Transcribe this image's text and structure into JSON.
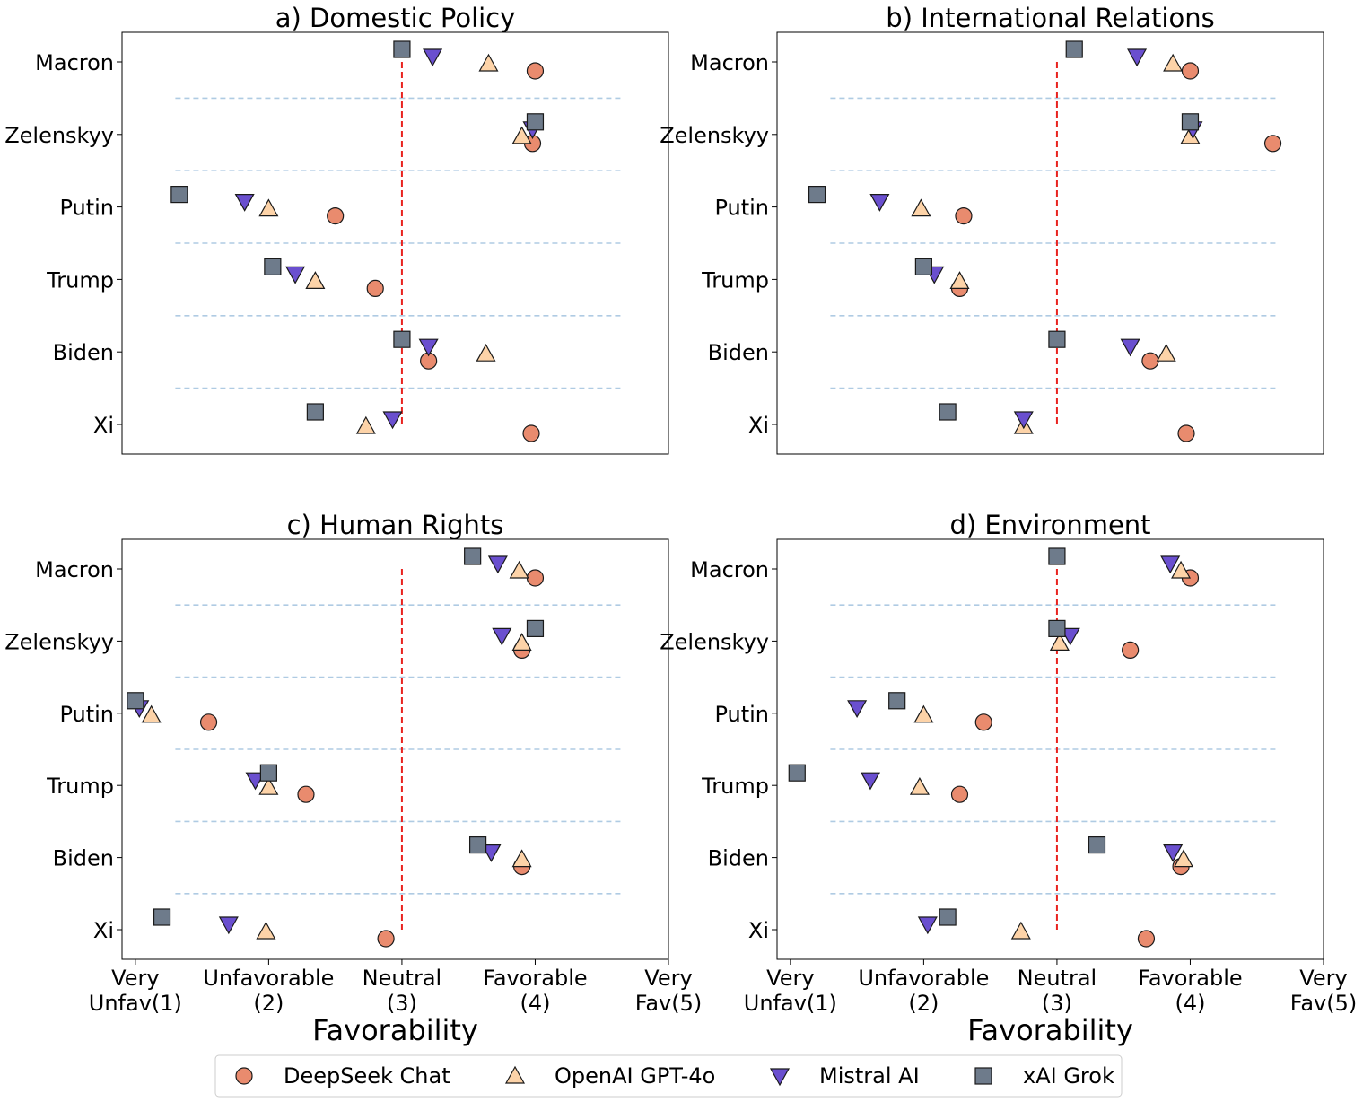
{
  "figure": {
    "xlabel": "Favorability",
    "legend_position": "bottom-center",
    "legend": [
      {
        "name": "DeepSeek Chat",
        "marker": "circle",
        "color": "#E98B6E"
      },
      {
        "name": "OpenAI GPT-4o",
        "marker": "triangle-up",
        "color": "#FDD3A8"
      },
      {
        "name": "Mistral AI",
        "marker": "triangle-down",
        "color": "#6A4FCF"
      },
      {
        "name": "xAI Grok",
        "marker": "square",
        "color": "#6E7B8B"
      }
    ],
    "neutral_line_color": "#E8231F",
    "separator_color": "#AFCBE3"
  },
  "chart_data": [
    {
      "type": "scatter",
      "title": "a) Domestic Policy",
      "xlabel": "",
      "categories": [
        "Macron",
        "Zelenskyy",
        "Putin",
        "Trump",
        "Biden",
        "Xi"
      ],
      "xlim": [
        0.9,
        5.0
      ],
      "xticks": [],
      "series": [
        {
          "name": "DeepSeek Chat",
          "values": [
            4.0,
            3.98,
            2.5,
            2.8,
            3.2,
            3.97
          ]
        },
        {
          "name": "OpenAI GPT-4o",
          "values": [
            3.65,
            3.9,
            2.0,
            2.35,
            3.63,
            2.73
          ]
        },
        {
          "name": "Mistral AI",
          "values": [
            3.23,
            3.98,
            1.82,
            2.2,
            3.2,
            2.93
          ]
        },
        {
          "name": "xAI Grok",
          "values": [
            3.0,
            4.0,
            1.33,
            2.03,
            3.0,
            2.35
          ]
        }
      ]
    },
    {
      "type": "scatter",
      "title": "b) International Relations",
      "xlabel": "",
      "categories": [
        "Macron",
        "Zelenskyy",
        "Putin",
        "Trump",
        "Biden",
        "Xi"
      ],
      "xlim": [
        0.9,
        5.0
      ],
      "xticks": [],
      "series": [
        {
          "name": "DeepSeek Chat",
          "values": [
            4.0,
            4.62,
            2.3,
            2.27,
            3.7,
            3.97
          ]
        },
        {
          "name": "OpenAI GPT-4o",
          "values": [
            3.87,
            4.0,
            1.98,
            2.27,
            3.82,
            2.75
          ]
        },
        {
          "name": "Mistral AI",
          "values": [
            3.6,
            4.02,
            1.67,
            2.08,
            3.55,
            2.75
          ]
        },
        {
          "name": "xAI Grok",
          "values": [
            3.13,
            4.0,
            1.2,
            2.0,
            3.0,
            2.18
          ]
        }
      ]
    },
    {
      "type": "scatter",
      "title": "c) Human Rights",
      "xlabel": "Favorability",
      "categories": [
        "Macron",
        "Zelenskyy",
        "Putin",
        "Trump",
        "Biden",
        "Xi"
      ],
      "xlim": [
        0.9,
        5.0
      ],
      "xticks": [
        "Very\nUnfav(1)",
        "Unfavorable\n(2)",
        "Neutral\n(3)",
        "Favorable\n(4)",
        "Very\nFav(5)"
      ],
      "series": [
        {
          "name": "DeepSeek Chat",
          "values": [
            4.0,
            3.9,
            1.55,
            2.28,
            3.9,
            2.88
          ]
        },
        {
          "name": "OpenAI GPT-4o",
          "values": [
            3.88,
            3.9,
            1.12,
            2.0,
            3.9,
            1.98
          ]
        },
        {
          "name": "Mistral AI",
          "values": [
            3.72,
            3.75,
            1.03,
            1.9,
            3.67,
            1.7
          ]
        },
        {
          "name": "xAI Grok",
          "values": [
            3.53,
            4.0,
            1.0,
            2.0,
            3.57,
            1.2
          ]
        }
      ]
    },
    {
      "type": "scatter",
      "title": "d) Environment",
      "xlabel": "Favorability",
      "categories": [
        "Macron",
        "Zelenskyy",
        "Putin",
        "Trump",
        "Biden",
        "Xi"
      ],
      "xlim": [
        0.9,
        5.0
      ],
      "xticks": [
        "Very\nUnfav(1)",
        "Unfavorable\n(2)",
        "Neutral\n(3)",
        "Favorable\n(4)",
        "Very\nFav(5)"
      ],
      "series": [
        {
          "name": "DeepSeek Chat",
          "values": [
            4.0,
            3.55,
            2.45,
            2.27,
            3.93,
            3.67
          ]
        },
        {
          "name": "OpenAI GPT-4o",
          "values": [
            3.93,
            3.02,
            2.0,
            1.97,
            3.95,
            2.73
          ]
        },
        {
          "name": "Mistral AI",
          "values": [
            3.85,
            3.1,
            1.5,
            1.6,
            3.87,
            2.03
          ]
        },
        {
          "name": "xAI Grok",
          "values": [
            3.0,
            3.0,
            1.8,
            1.05,
            3.3,
            2.18
          ]
        }
      ]
    }
  ]
}
